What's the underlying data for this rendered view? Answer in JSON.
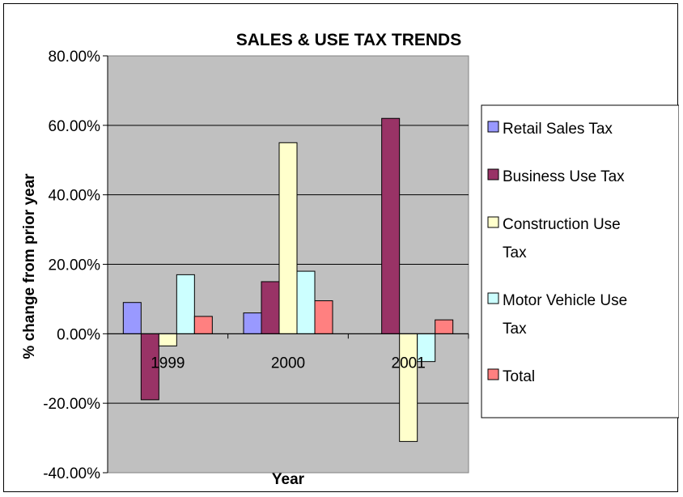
{
  "chart_data": {
    "type": "bar",
    "title": "SALES & USE TAX TRENDS",
    "xlabel": "Year",
    "ylabel": "% change from prior year",
    "categories": [
      "1999",
      "2000",
      "2001"
    ],
    "ylim": [
      -0.4,
      0.8
    ],
    "yticks": [
      {
        "value": 0.8,
        "label": "80.00%"
      },
      {
        "value": 0.6,
        "label": "60.00%"
      },
      {
        "value": 0.4,
        "label": "40.00%"
      },
      {
        "value": 0.2,
        "label": "20.00%"
      },
      {
        "value": 0.0,
        "label": "0.00%"
      },
      {
        "value": -0.2,
        "label": "-20.00%"
      },
      {
        "value": -0.4,
        "label": "-40.00%"
      }
    ],
    "grid": true,
    "legend_position": "right",
    "plot_background": "#c0c0c0",
    "series": [
      {
        "name": "Retail Sales Tax",
        "legend_lines": [
          "Retail Sales Tax"
        ],
        "color": "#9999ff",
        "values": [
          0.09,
          0.06,
          null
        ]
      },
      {
        "name": "Business Use Tax",
        "legend_lines": [
          "Business Use Tax"
        ],
        "color": "#993366",
        "values": [
          -0.19,
          0.15,
          0.62
        ]
      },
      {
        "name": "Construction Use Tax",
        "legend_lines": [
          "Construction Use",
          "Tax"
        ],
        "color": "#ffffcc",
        "values": [
          -0.035,
          0.55,
          -0.31
        ]
      },
      {
        "name": "Motor Vehicle Use Tax",
        "legend_lines": [
          "Motor Vehicle Use",
          "Tax"
        ],
        "color": "#ccffff",
        "values": [
          0.17,
          0.18,
          -0.08
        ]
      },
      {
        "name": "Total",
        "legend_lines": [
          "Total"
        ],
        "color": "#ff8080",
        "values": [
          0.05,
          0.095,
          0.04
        ]
      }
    ]
  }
}
